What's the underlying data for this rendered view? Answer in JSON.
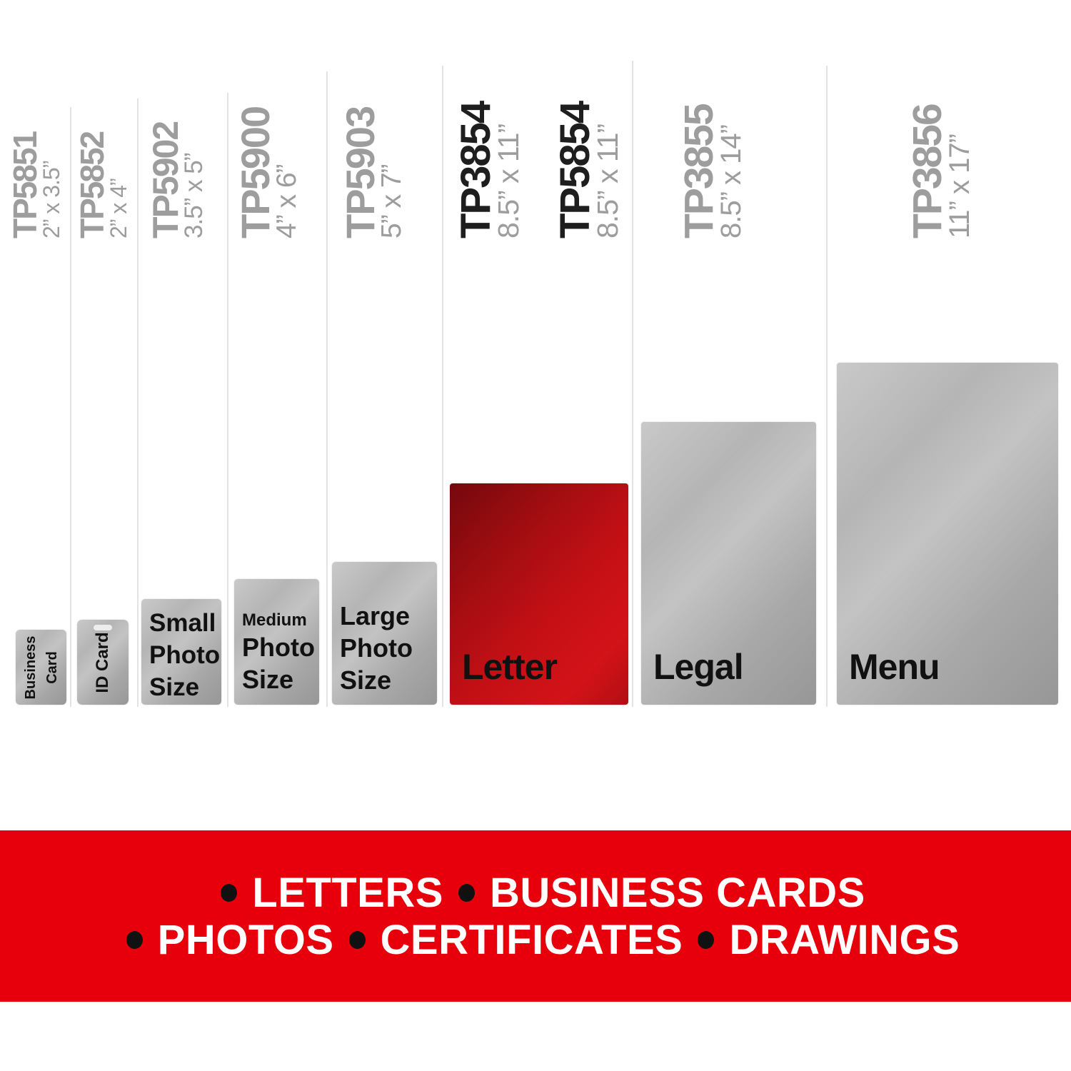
{
  "colors": {
    "accent_red": "#e7000b",
    "pouch_red": "#c41015",
    "pouch_gray": "#b0b0b0",
    "label_gray": "#9d9d9d",
    "label_black": "#1e1e1e",
    "divider": "#e3e3e3",
    "box_label": "#111111",
    "banner_text": "#ffffff",
    "banner_bullet": "#111111"
  },
  "size_labels": [
    {
      "slug": "tp5851",
      "code": "TP5851",
      "dims": "2” x 3.5”",
      "emphasized": false
    },
    {
      "slug": "tp5852",
      "code": "TP5852",
      "dims": "2” x 4”",
      "emphasized": false
    },
    {
      "slug": "tp5902",
      "code": "TP5902",
      "dims": "3.5” x 5”",
      "emphasized": false
    },
    {
      "slug": "tp5900",
      "code": "TP5900",
      "dims": "4” x 6”",
      "emphasized": false
    },
    {
      "slug": "tp5903",
      "code": "TP5903",
      "dims": "5” x 7”",
      "emphasized": false
    },
    {
      "slug": "tp3854",
      "code": "TP3854",
      "dims": "8.5” x 11”",
      "emphasized": true
    },
    {
      "slug": "tp5854",
      "code": "TP5854",
      "dims": "8.5” x 11”",
      "emphasized": true
    },
    {
      "slug": "tp3855",
      "code": "TP3855",
      "dims": "8.5” x 14”",
      "emphasized": false
    },
    {
      "slug": "tp3856",
      "code": "TP3856",
      "dims": "11” x 17”",
      "emphasized": false
    }
  ],
  "boxes": [
    {
      "slug": "business-card",
      "label": "Business Card",
      "lines": [
        "Business",
        "Card"
      ],
      "orientation": "rotated",
      "highlight": false,
      "slot": false
    },
    {
      "slug": "id-card",
      "label": "ID Card",
      "lines": [
        "ID Card"
      ],
      "orientation": "rotated",
      "highlight": false,
      "slot": true
    },
    {
      "slug": "small-photo",
      "label": "Small Photo Size",
      "lines": [
        "Small",
        "Photo",
        "Size"
      ],
      "orientation": "horizontal",
      "highlight": false,
      "slot": false
    },
    {
      "slug": "medium-photo",
      "label": "Medium Photo Size",
      "lines": [
        "Medium",
        "Photo",
        "Size"
      ],
      "orientation": "horizontal",
      "first_line_small": true,
      "highlight": false,
      "slot": false
    },
    {
      "slug": "large-photo",
      "label": "Large Photo Size",
      "lines": [
        "Large",
        "Photo",
        "Size"
      ],
      "orientation": "horizontal",
      "highlight": false,
      "slot": false
    },
    {
      "slug": "letter",
      "label": "Letter",
      "lines": [
        "Letter"
      ],
      "orientation": "corner",
      "highlight": true,
      "slot": false
    },
    {
      "slug": "legal",
      "label": "Legal",
      "lines": [
        "Legal"
      ],
      "orientation": "corner",
      "highlight": false,
      "slot": false
    },
    {
      "slug": "menu",
      "label": "Menu",
      "lines": [
        "Menu"
      ],
      "orientation": "corner",
      "highlight": false,
      "slot": false
    }
  ],
  "banner": {
    "lines": [
      {
        "items": [
          "LETTERS",
          "BUSINESS CARDS"
        ]
      },
      {
        "items": [
          "PHOTOS",
          "CERTIFICATES",
          "DRAWINGS"
        ]
      }
    ]
  }
}
